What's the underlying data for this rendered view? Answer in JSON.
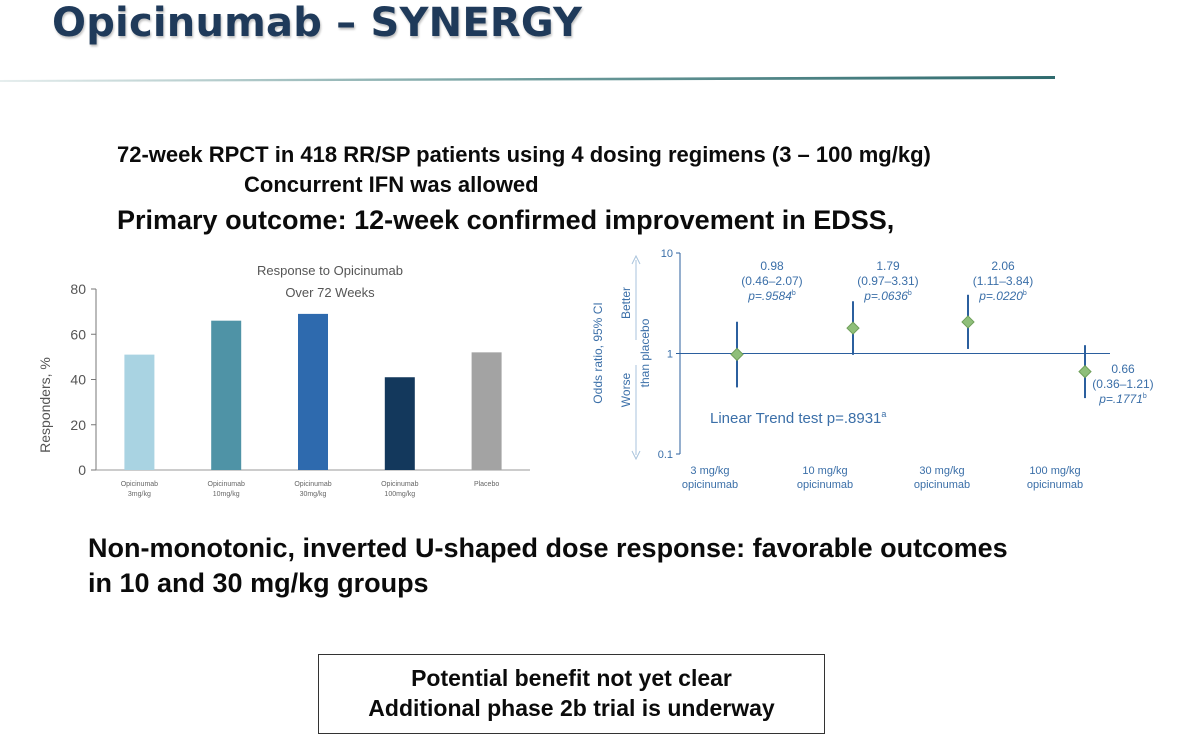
{
  "slide": {
    "title": "Opicinumab – SYNERGY",
    "rule_color_start": "#e6eeee",
    "rule_color_end": "#2f6b6e"
  },
  "text": {
    "study_line": "72-week RPCT in 418 RR/SP patients using 4 dosing regimens (3 – 100 mg/kg)",
    "ifn_line": "Concurrent IFN was allowed",
    "primary_outcome": "Primary outcome: 12-week confirmed improvement in EDSS,",
    "conclusion_line1": "Non-monotonic, inverted U-shaped dose response: favorable outcomes",
    "conclusion_line2": "in 10 and 30 mg/kg groups",
    "callout_line1": "Potential benefit not yet clear",
    "callout_line2": "Additional phase 2b trial is underway"
  },
  "chart_data": [
    {
      "type": "bar",
      "title": "Response to Opicinumab",
      "subtitle": "Over 72 Weeks",
      "ylabel": "Responders, %",
      "xlabel": "",
      "ylim": [
        0,
        80
      ],
      "yticks": [
        0,
        20,
        40,
        60,
        80
      ],
      "categories": [
        [
          "Opicinumab",
          "3mg/kg"
        ],
        [
          "Opicinumab",
          "10mg/kg"
        ],
        [
          "Opicinumab",
          "30mg/kg"
        ],
        [
          "Opicinumab",
          "100mg/kg"
        ],
        [
          "Placebo"
        ]
      ],
      "values": [
        51,
        66,
        69,
        41,
        52
      ],
      "colors": [
        "#a9d3e2",
        "#4f93a6",
        "#2e6aae",
        "#13385c",
        "#a3a3a3"
      ],
      "grid": false
    },
    {
      "type": "scatter",
      "subtype": "forest-plot",
      "ylabel": "Odds ratio, 95% CI",
      "yscale": "log",
      "ylim": [
        0.1,
        10
      ],
      "yticks": [
        "10",
        "1",
        "0.1"
      ],
      "better_label": "Better",
      "worse_label": "Worse",
      "than_placebo_label": "than placebo",
      "reference_line": 1,
      "categories": [
        [
          "3 mg/kg",
          "opicinumab"
        ],
        [
          "10 mg/kg",
          "opicinumab"
        ],
        [
          "30 mg/kg",
          "opicinumab"
        ],
        [
          "100 mg/kg",
          "opicinumab"
        ]
      ],
      "points": [
        {
          "or": 0.98,
          "lo": 0.46,
          "hi": 2.07,
          "or_label": "0.98",
          "ci_label": "(0.46–2.07)",
          "p_label": "p=.9584",
          "p_sup": "b"
        },
        {
          "or": 1.79,
          "lo": 0.97,
          "hi": 3.31,
          "or_label": "1.79",
          "ci_label": "(0.97–3.31)",
          "p_label": "p=.0636",
          "p_sup": "b"
        },
        {
          "or": 2.06,
          "lo": 1.11,
          "hi": 3.84,
          "or_label": "2.06",
          "ci_label": "(1.11–3.84)",
          "p_label": "p=.0220",
          "p_sup": "b"
        },
        {
          "or": 0.66,
          "lo": 0.36,
          "hi": 1.21,
          "or_label": "0.66",
          "ci_label": "(0.36–1.21)",
          "p_label": "p=.1771",
          "p_sup": "b"
        }
      ],
      "trend_label": "Linear Trend test p=.8931",
      "trend_sup": "a",
      "label_color": "#3b6fa8",
      "marker_color": "#8fbf7a",
      "errorbar_color": "#2b5f9e",
      "grid": false
    }
  ]
}
